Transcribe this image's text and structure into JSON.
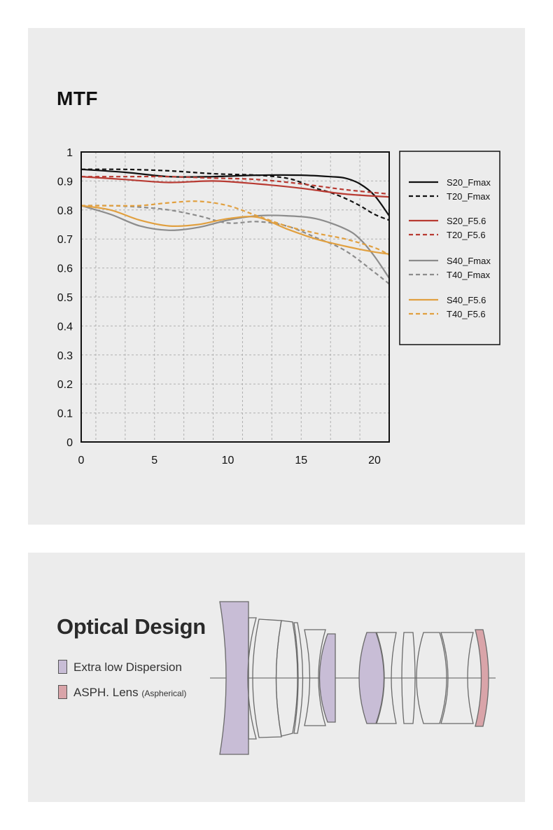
{
  "mtf": {
    "title": "MTF",
    "chart_data": {
      "type": "line",
      "title": "MTF",
      "xlabel": "",
      "ylabel": "",
      "xlim": [
        0,
        21
      ],
      "ylim": [
        0,
        1
      ],
      "x_ticks": [
        0,
        5,
        10,
        15,
        20
      ],
      "y_ticks": [
        0,
        0.1,
        0.2,
        0.3,
        0.4,
        0.5,
        0.6,
        0.7,
        0.8,
        0.9,
        1
      ],
      "grid": true,
      "legend_position": "right",
      "series": [
        {
          "name": "S20_Fmax",
          "color": "#111111",
          "dashed": false,
          "x": [
            0,
            3,
            6,
            9,
            12,
            15,
            17,
            18,
            19,
            20,
            21
          ],
          "values": [
            0.94,
            0.93,
            0.915,
            0.915,
            0.92,
            0.92,
            0.915,
            0.91,
            0.89,
            0.85,
            0.78
          ]
        },
        {
          "name": "T20_Fmax",
          "color": "#111111",
          "dashed": true,
          "x": [
            0,
            3,
            6,
            9,
            12,
            14,
            15,
            16,
            17,
            18,
            19,
            20,
            21
          ],
          "values": [
            0.94,
            0.94,
            0.935,
            0.925,
            0.92,
            0.91,
            0.895,
            0.875,
            0.86,
            0.84,
            0.815,
            0.785,
            0.765
          ]
        },
        {
          "name": "S20_F5.6",
          "color": "#b83a32",
          "dashed": false,
          "x": [
            0,
            3,
            6,
            9,
            12,
            15,
            18,
            21
          ],
          "values": [
            0.915,
            0.905,
            0.895,
            0.9,
            0.89,
            0.875,
            0.855,
            0.845
          ]
        },
        {
          "name": "T20_F5.6",
          "color": "#b83a32",
          "dashed": true,
          "x": [
            0,
            3,
            6,
            9,
            12,
            15,
            18,
            21
          ],
          "values": [
            0.915,
            0.915,
            0.915,
            0.91,
            0.905,
            0.89,
            0.87,
            0.855
          ]
        },
        {
          "name": "S40_Fmax",
          "color": "#8c8c8c",
          "dashed": false,
          "x": [
            0,
            2,
            4,
            6,
            8,
            10,
            12,
            14,
            16,
            18,
            19,
            20,
            21
          ],
          "values": [
            0.815,
            0.785,
            0.745,
            0.73,
            0.74,
            0.765,
            0.78,
            0.78,
            0.77,
            0.735,
            0.7,
            0.64,
            0.565
          ]
        },
        {
          "name": "T40_Fmax",
          "color": "#8c8c8c",
          "dashed": true,
          "x": [
            0,
            2,
            4,
            6,
            8,
            10,
            12,
            14,
            16,
            18,
            20,
            21
          ],
          "values": [
            0.815,
            0.815,
            0.81,
            0.8,
            0.78,
            0.755,
            0.76,
            0.745,
            0.705,
            0.66,
            0.585,
            0.545
          ]
        },
        {
          "name": "S40_F5.6",
          "color": "#e1a040",
          "dashed": false,
          "x": [
            0,
            2,
            4,
            6,
            8,
            10,
            12,
            14,
            16,
            18,
            20,
            21
          ],
          "values": [
            0.815,
            0.8,
            0.765,
            0.745,
            0.75,
            0.77,
            0.775,
            0.735,
            0.7,
            0.675,
            0.655,
            0.648
          ]
        },
        {
          "name": "T40_F5.6",
          "color": "#e1a040",
          "dashed": true,
          "x": [
            0,
            2,
            4,
            6,
            8,
            10,
            12,
            14,
            16,
            18,
            20,
            21
          ],
          "values": [
            0.815,
            0.815,
            0.815,
            0.825,
            0.83,
            0.815,
            0.78,
            0.745,
            0.72,
            0.7,
            0.67,
            0.645
          ]
        }
      ]
    }
  },
  "optical": {
    "title": "Optical Design",
    "legend": [
      {
        "label": "Extra low Dispersion",
        "color": "#c8bdd6"
      },
      {
        "label": "ASPH. Lens",
        "note": "(Aspherical)",
        "color": "#d9a4a9"
      }
    ],
    "colors": {
      "ed": "#c8bdd6",
      "asph": "#d9a4a9",
      "outline": "#6a6a6a"
    }
  }
}
